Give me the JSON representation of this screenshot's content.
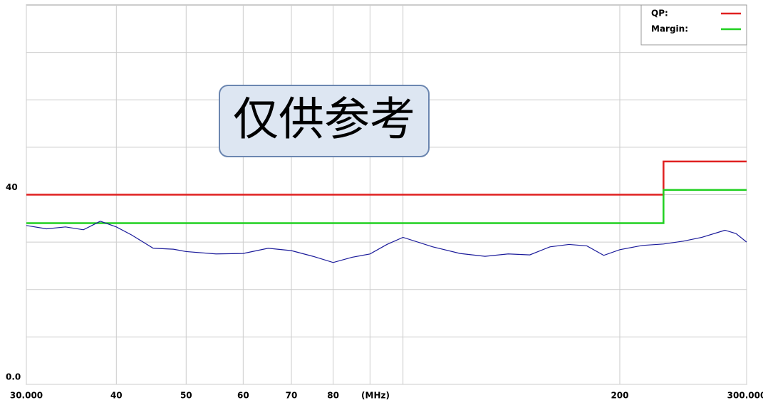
{
  "chart_data": {
    "type": "line",
    "watermark": "仅供参考",
    "x_unit_label": "(MHz)",
    "xscale": "log",
    "xlim": [
      30,
      300
    ],
    "xticks": [
      {
        "value": 30,
        "label": "30.000"
      },
      40,
      50,
      60,
      70,
      80,
      200,
      {
        "value": 300,
        "label": "300.000"
      }
    ],
    "minor_xticks": [
      90,
      100
    ],
    "ylim": [
      0,
      80
    ],
    "yticks": [
      {
        "value": 0,
        "label": "0.0"
      },
      40
    ],
    "minor_yticks": [
      10,
      20,
      30,
      50,
      60,
      70
    ],
    "grid": true,
    "legend": "upper right",
    "series": [
      {
        "name": "QP:",
        "color": "#e02020",
        "x": [
          30,
          230,
          230,
          300
        ],
        "values": [
          40,
          40,
          47,
          47
        ]
      },
      {
        "name": "Margin:",
        "color": "#20d020",
        "x": [
          30,
          230,
          230,
          300
        ],
        "values": [
          34,
          34,
          41,
          41
        ]
      },
      {
        "color": "#1a1a9a",
        "x": [
          30,
          32,
          34,
          36,
          38,
          40,
          42,
          45,
          48,
          50,
          55,
          60,
          65,
          70,
          75,
          80,
          85,
          90,
          95,
          100,
          110,
          120,
          130,
          140,
          150,
          160,
          170,
          180,
          190,
          200,
          215,
          230,
          245,
          260,
          280,
          290,
          300
        ],
        "values": [
          33.5,
          32.8,
          33.2,
          32.6,
          34.4,
          33.2,
          31.5,
          28.7,
          28.5,
          28,
          27.5,
          27.6,
          28.7,
          28.2,
          27,
          25.7,
          26.8,
          27.5,
          29.5,
          31,
          29,
          27.6,
          27,
          27.5,
          27.3,
          29,
          29.5,
          29.2,
          27.2,
          28.4,
          29.3,
          29.6,
          30.2,
          31,
          32.5,
          31.8,
          30
        ]
      }
    ]
  }
}
